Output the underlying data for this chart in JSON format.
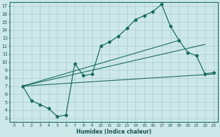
{
  "xlabel": "Humidex (Indice chaleur)",
  "xlim": [
    -0.5,
    23.5
  ],
  "ylim": [
    2.5,
    17.5
  ],
  "xticks": [
    0,
    1,
    2,
    3,
    4,
    5,
    6,
    7,
    8,
    9,
    10,
    11,
    12,
    13,
    14,
    15,
    16,
    17,
    18,
    19,
    20,
    21,
    22,
    23
  ],
  "yticks": [
    3,
    4,
    5,
    6,
    7,
    8,
    9,
    10,
    11,
    12,
    13,
    14,
    15,
    16,
    17
  ],
  "bg_color": "#cce8e8",
  "grid_color": "#aacccc",
  "line_color": "#1a6b5a",
  "curve_x": [
    1,
    2,
    3,
    4,
    5,
    6,
    7,
    8,
    9,
    10,
    11,
    12,
    13,
    14,
    15,
    16,
    17,
    18,
    19,
    20,
    21,
    22,
    23
  ],
  "curve_y": [
    7.0,
    5.2,
    4.7,
    4.2,
    3.2,
    3.4,
    9.8,
    8.3,
    8.5,
    12.0,
    12.5,
    13.2,
    14.2,
    15.3,
    15.8,
    16.3,
    17.2,
    14.5,
    12.7,
    11.2,
    10.8,
    8.5,
    8.7
  ],
  "line1_x": [
    1,
    23
  ],
  "line1_y": [
    7.0,
    8.5
  ],
  "line2_x": [
    1,
    19
  ],
  "line2_y": [
    7.0,
    12.7
  ],
  "line3_x": [
    1,
    22
  ],
  "line3_y": [
    7.0,
    12.2
  ]
}
